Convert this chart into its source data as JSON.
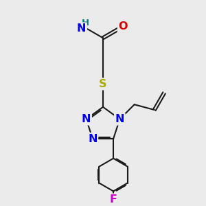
{
  "bg": "#ebebeb",
  "bc": "#1a1a1a",
  "N_color": "#0000ee",
  "O_color": "#dd0000",
  "S_color": "#aaaa00",
  "F_color": "#cc00cc",
  "H_color": "#008080",
  "lw": 1.5,
  "dbo": 0.055,
  "fs": 10.5,
  "xlim": [
    0,
    10
  ],
  "ylim": [
    0,
    10
  ]
}
